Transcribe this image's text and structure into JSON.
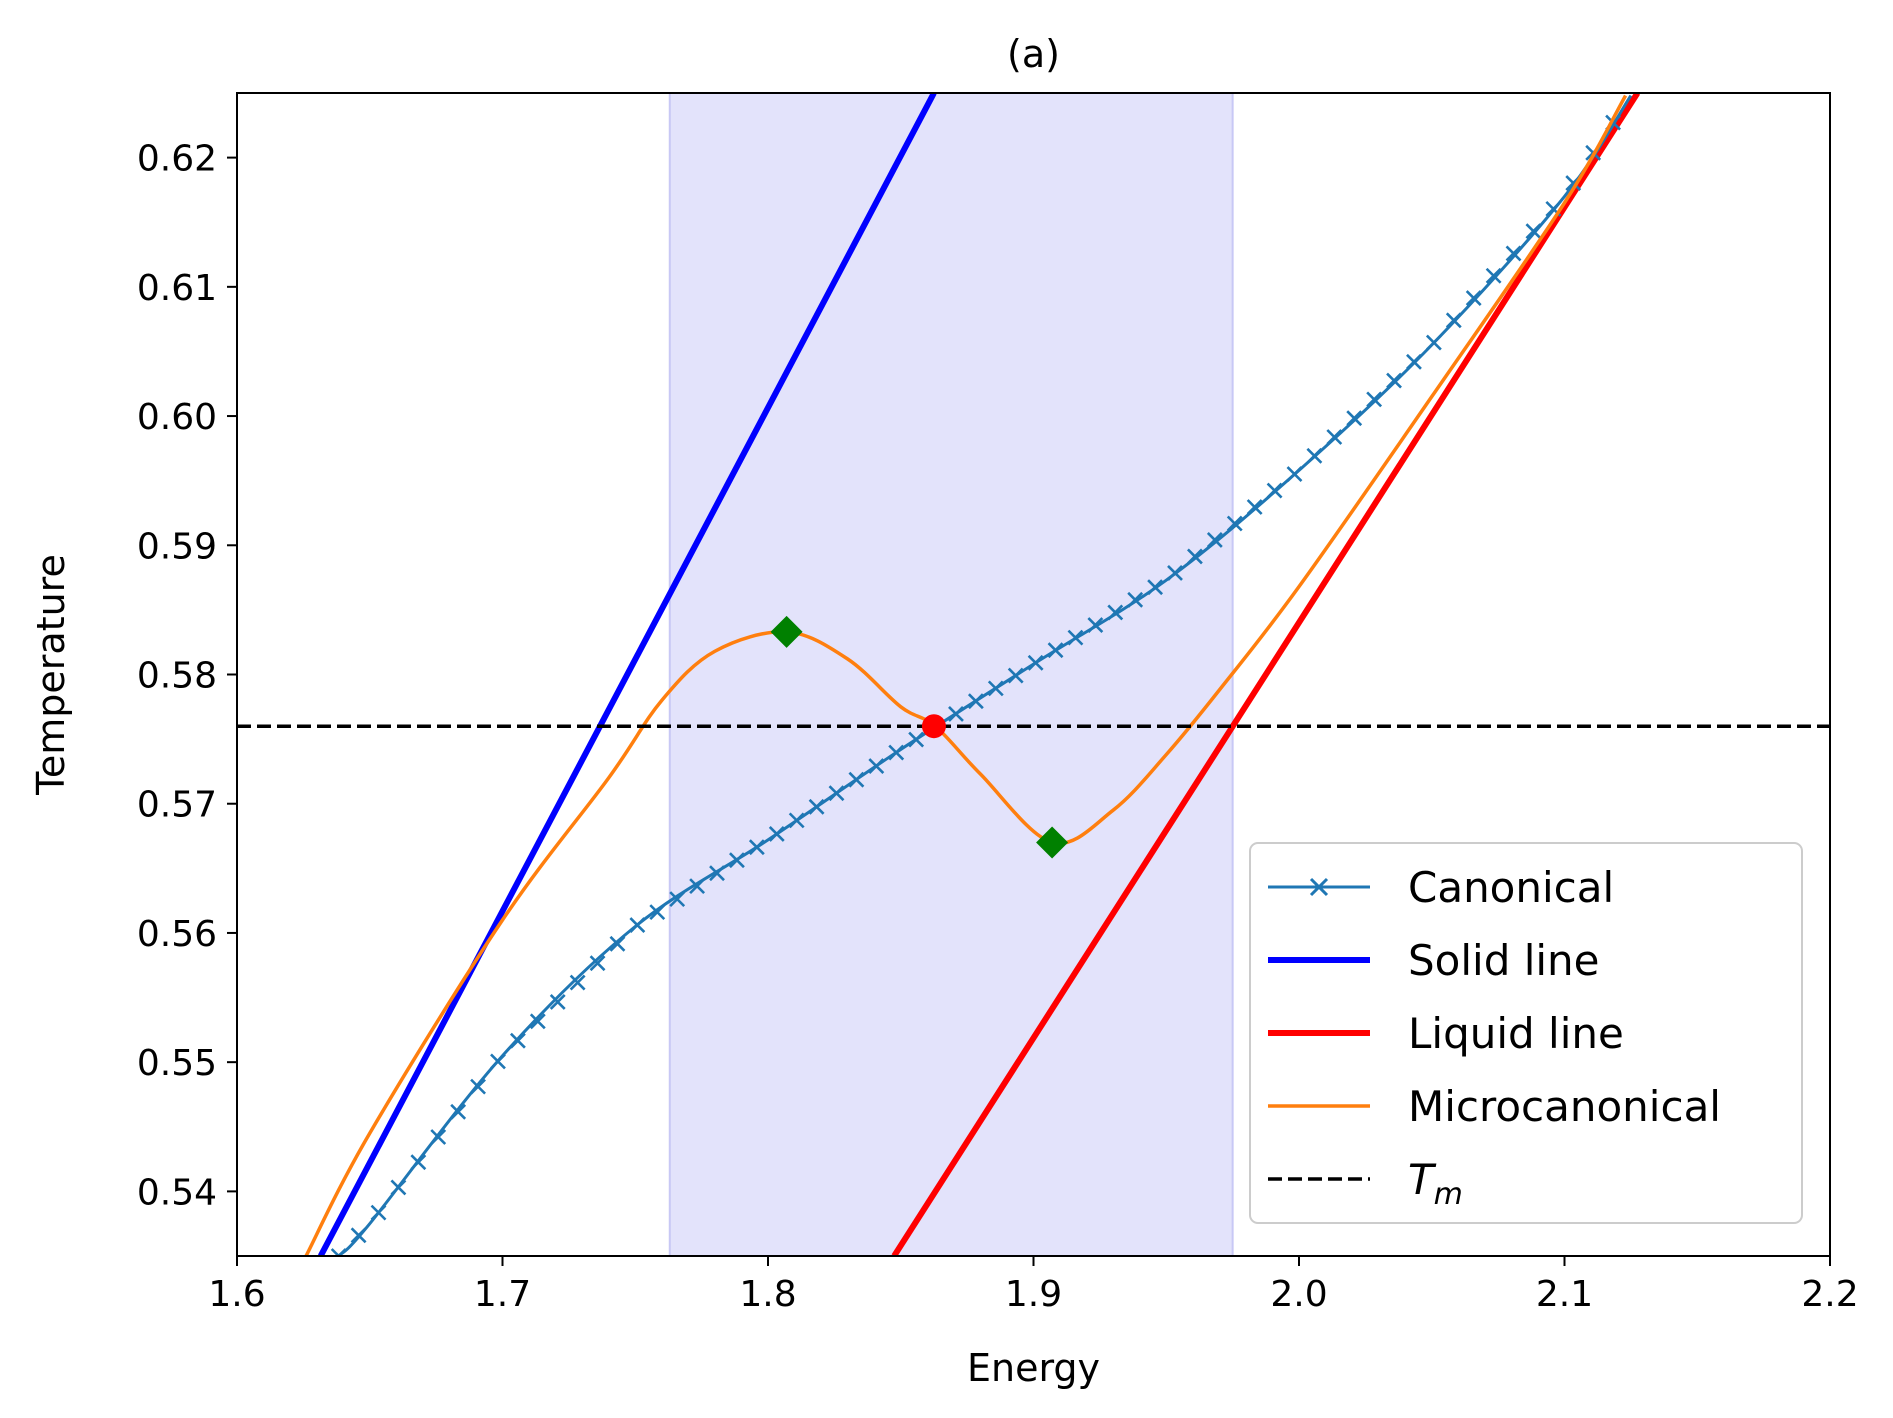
{
  "chart_data": {
    "type": "line",
    "title": "(a)",
    "xlabel": "Energy",
    "ylabel": "Temperature",
    "xlim": [
      1.6,
      2.2
    ],
    "ylim": [
      0.535,
      0.625
    ],
    "xticks": [
      "1.6",
      "1.7",
      "1.8",
      "1.9",
      "2.0",
      "2.1",
      "2.2"
    ],
    "yticks": [
      "0.54",
      "0.55",
      "0.56",
      "0.57",
      "0.58",
      "0.59",
      "0.60",
      "0.61",
      "0.62"
    ],
    "shaded_region": {
      "x": [
        1.763,
        1.975
      ],
      "color": "#e3e3fb"
    },
    "series": [
      {
        "name": "Canonical",
        "color": "#1f77b4",
        "marker": "x",
        "x": [
          1.6383,
          1.65,
          1.7,
          1.75,
          1.8,
          1.85,
          1.9,
          1.95,
          2.0,
          2.05,
          2.1,
          2.125
        ],
        "y": [
          0.535,
          0.5375,
          0.5505,
          0.5605,
          0.5672,
          0.5742,
          0.5808,
          0.5873,
          0.5958,
          0.6055,
          0.617,
          0.6248
        ],
        "marker_spacing": 0.0075
      },
      {
        "name": "Solid line",
        "color": "#0000ff",
        "x": [
          1.6315,
          1.8625
        ],
        "y": [
          0.535,
          0.625
        ]
      },
      {
        "name": "Liquid line",
        "color": "#ff0000",
        "x": [
          1.8475,
          2.1275
        ],
        "y": [
          0.535,
          0.625
        ]
      },
      {
        "name": "Microcanonical",
        "color": "#ff7f0e",
        "x": [
          1.626,
          1.65,
          1.7,
          1.74,
          1.76,
          1.78,
          1.807,
          1.83,
          1.85,
          1.863,
          1.88,
          1.907,
          1.93,
          1.95,
          1.97,
          2.0,
          2.05,
          2.1,
          2.123
        ],
        "y": [
          0.535,
          0.5445,
          0.561,
          0.572,
          0.578,
          0.5818,
          0.5833,
          0.5812,
          0.5775,
          0.576,
          0.5723,
          0.567,
          0.5695,
          0.5738,
          0.5788,
          0.5868,
          0.6015,
          0.6165,
          0.6248
        ]
      },
      {
        "name": "T_m",
        "legend_label": "T",
        "legend_sub": "m",
        "color": "#000000",
        "dash": true,
        "x": [
          1.6,
          2.2
        ],
        "y": [
          0.576,
          0.576
        ]
      }
    ],
    "markers": [
      {
        "shape": "diamond",
        "color": "#008000",
        "x": 1.807,
        "y": 0.5833
      },
      {
        "shape": "diamond",
        "color": "#008000",
        "x": 1.907,
        "y": 0.567
      },
      {
        "shape": "circle",
        "color": "#ff0000",
        "x": 1.8625,
        "y": 0.576
      }
    ],
    "legend_position": "lower-right"
  }
}
